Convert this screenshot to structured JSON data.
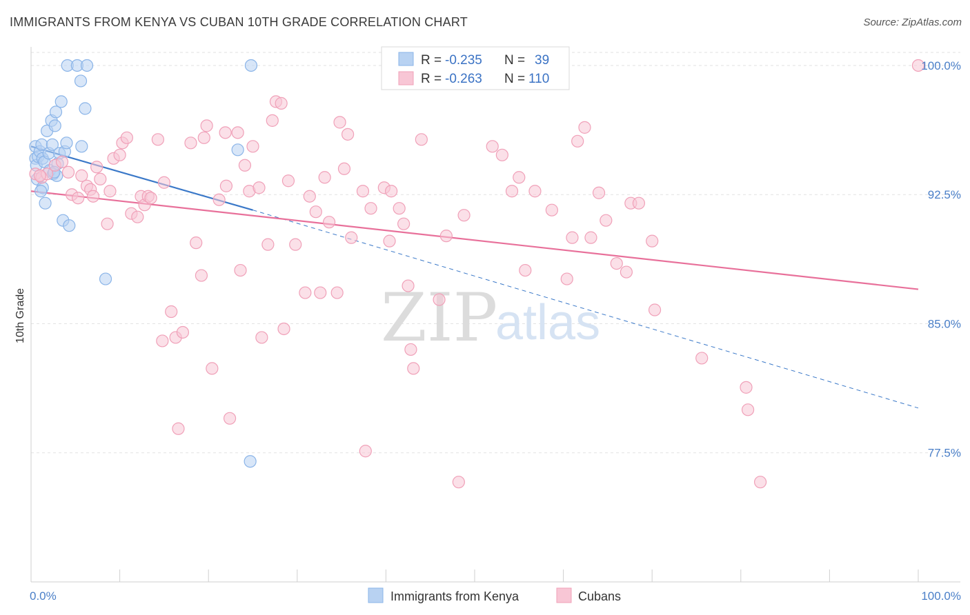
{
  "title": "IMMIGRANTS FROM KENYA VS CUBAN 10TH GRADE CORRELATION CHART",
  "source": "Source: ZipAtlas.com",
  "watermark": {
    "zip": "ZIP",
    "atlas": "atlas"
  },
  "chart_data": {
    "type": "scatter",
    "title": "IMMIGRANTS FROM KENYA VS CUBAN 10TH GRADE CORRELATION CHART",
    "xlabel": "",
    "ylabel": "10th Grade",
    "xlim": [
      0,
      100
    ],
    "ylim": [
      70.0,
      101.0
    ],
    "x_tick_labels": [
      "0.0%",
      "100.0%"
    ],
    "y_ticks": [
      100.0,
      92.5,
      85.0,
      77.5
    ],
    "y_tick_labels": [
      "100.0%",
      "92.5%",
      "85.0%",
      "77.5%"
    ],
    "legend": {
      "rows": [
        {
          "r_label": "R =",
          "r_value": "-0.235",
          "n_label": "N =",
          "n_value": "39"
        },
        {
          "r_label": "R =",
          "r_value": "-0.263",
          "n_label": "N =",
          "n_value": "110"
        }
      ]
    },
    "series": [
      {
        "name": "Immigrants from Kenya",
        "color": "#8ab4e8",
        "fill": "#b8d2f2",
        "line_color": "#3a78c8",
        "trend": {
          "x0": 0,
          "y0": 95.3,
          "x1": 25,
          "y1": 91.6,
          "dash_to_x": 100,
          "dash_to_y": 80.1
        },
        "points": [
          [
            0.5,
            95.3
          ],
          [
            0.5,
            94.6
          ],
          [
            0.6,
            94.2
          ],
          [
            0.7,
            93.4
          ],
          [
            0.8,
            94.7
          ],
          [
            1.0,
            95.0
          ],
          [
            1.2,
            95.4
          ],
          [
            1.3,
            94.6
          ],
          [
            1.5,
            94.4
          ],
          [
            1.6,
            92.0
          ],
          [
            1.8,
            96.2
          ],
          [
            2.0,
            94.9
          ],
          [
            2.1,
            93.9
          ],
          [
            2.3,
            96.8
          ],
          [
            2.4,
            95.4
          ],
          [
            2.5,
            93.7
          ],
          [
            2.7,
            96.5
          ],
          [
            2.8,
            97.3
          ],
          [
            2.9,
            93.6
          ],
          [
            3.0,
            94.3
          ],
          [
            3.2,
            94.9
          ],
          [
            3.4,
            97.9
          ],
          [
            3.6,
            91.0
          ],
          [
            3.8,
            95.0
          ],
          [
            4.0,
            95.5
          ],
          [
            4.3,
            90.7
          ],
          [
            4.1,
            100.0
          ],
          [
            5.2,
            100.0
          ],
          [
            6.3,
            100.0
          ],
          [
            5.6,
            99.1
          ],
          [
            6.1,
            97.5
          ],
          [
            5.7,
            95.3
          ],
          [
            8.4,
            87.6
          ],
          [
            23.3,
            95.1
          ],
          [
            24.8,
            100.0
          ],
          [
            24.7,
            77.0
          ],
          [
            1.3,
            92.9
          ],
          [
            1.1,
            92.7
          ],
          [
            2.6,
            93.8
          ]
        ]
      },
      {
        "name": "Cubans",
        "color": "#f0a0b8",
        "fill": "#f8c6d5",
        "line_color": "#e8709a",
        "trend": {
          "x0": 0,
          "y0": 92.7,
          "x1": 100,
          "y1": 87.0
        },
        "points": [
          [
            0.5,
            93.7
          ],
          [
            1.2,
            93.5
          ],
          [
            1.8,
            93.7
          ],
          [
            2.7,
            94.2
          ],
          [
            3.5,
            94.4
          ],
          [
            4.2,
            93.8
          ],
          [
            4.6,
            92.5
          ],
          [
            5.3,
            92.3
          ],
          [
            5.7,
            93.6
          ],
          [
            6.3,
            93.0
          ],
          [
            6.7,
            92.8
          ],
          [
            7.0,
            92.4
          ],
          [
            7.4,
            94.1
          ],
          [
            7.8,
            93.4
          ],
          [
            8.6,
            90.8
          ],
          [
            8.9,
            92.7
          ],
          [
            9.3,
            94.6
          ],
          [
            10.0,
            94.8
          ],
          [
            10.3,
            95.5
          ],
          [
            10.8,
            95.8
          ],
          [
            11.3,
            91.4
          ],
          [
            12.0,
            91.2
          ],
          [
            12.4,
            92.4
          ],
          [
            12.8,
            91.9
          ],
          [
            13.2,
            92.4
          ],
          [
            13.5,
            92.3
          ],
          [
            14.3,
            95.7
          ],
          [
            15.0,
            93.2
          ],
          [
            14.8,
            84.0
          ],
          [
            15.8,
            85.7
          ],
          [
            16.3,
            84.2
          ],
          [
            16.6,
            78.9
          ],
          [
            17.1,
            84.5
          ],
          [
            18.0,
            95.5
          ],
          [
            18.6,
            89.7
          ],
          [
            19.2,
            87.8
          ],
          [
            19.5,
            95.8
          ],
          [
            19.8,
            96.5
          ],
          [
            20.4,
            82.4
          ],
          [
            21.2,
            92.2
          ],
          [
            21.9,
            96.1
          ],
          [
            22.0,
            93.0
          ],
          [
            22.4,
            79.5
          ],
          [
            23.3,
            96.1
          ],
          [
            23.6,
            88.1
          ],
          [
            24.1,
            94.2
          ],
          [
            24.6,
            92.7
          ],
          [
            25.0,
            95.3
          ],
          [
            25.7,
            92.9
          ],
          [
            26.0,
            84.2
          ],
          [
            26.7,
            89.6
          ],
          [
            27.2,
            96.8
          ],
          [
            27.6,
            97.9
          ],
          [
            28.2,
            97.8
          ],
          [
            28.5,
            84.7
          ],
          [
            29.0,
            93.3
          ],
          [
            29.8,
            89.6
          ],
          [
            30.9,
            86.8
          ],
          [
            31.4,
            92.4
          ],
          [
            32.1,
            91.5
          ],
          [
            32.6,
            86.8
          ],
          [
            33.1,
            93.5
          ],
          [
            33.6,
            90.9
          ],
          [
            34.5,
            86.8
          ],
          [
            34.8,
            96.7
          ],
          [
            35.7,
            96.0
          ],
          [
            35.3,
            94.0
          ],
          [
            36.1,
            90.0
          ],
          [
            37.4,
            92.7
          ],
          [
            37.7,
            77.6
          ],
          [
            38.3,
            91.7
          ],
          [
            39.8,
            92.9
          ],
          [
            40.6,
            92.7
          ],
          [
            40.4,
            89.8
          ],
          [
            41.5,
            91.7
          ],
          [
            42.0,
            90.8
          ],
          [
            42.8,
            83.5
          ],
          [
            42.5,
            87.2
          ],
          [
            43.1,
            82.4
          ],
          [
            44.0,
            95.7
          ],
          [
            46.0,
            86.4
          ],
          [
            46.8,
            90.1
          ],
          [
            48.2,
            75.8
          ],
          [
            48.8,
            91.3
          ],
          [
            52.0,
            95.3
          ],
          [
            53.1,
            94.8
          ],
          [
            54.2,
            92.7
          ],
          [
            55.0,
            93.5
          ],
          [
            55.7,
            88.1
          ],
          [
            56.8,
            92.7
          ],
          [
            58.7,
            91.6
          ],
          [
            60.4,
            87.6
          ],
          [
            61.0,
            90.0
          ],
          [
            61.6,
            95.6
          ],
          [
            62.4,
            96.4
          ],
          [
            63.1,
            90.0
          ],
          [
            64.0,
            92.6
          ],
          [
            64.8,
            91.0
          ],
          [
            66.0,
            88.5
          ],
          [
            67.1,
            88.0
          ],
          [
            67.6,
            92.0
          ],
          [
            68.5,
            92.0
          ],
          [
            70.0,
            89.8
          ],
          [
            70.3,
            85.8
          ],
          [
            75.6,
            83.0
          ],
          [
            80.6,
            81.3
          ],
          [
            80.8,
            80.0
          ],
          [
            82.2,
            75.8
          ],
          [
            100.0,
            100.0
          ],
          [
            1.0,
            93.6
          ]
        ]
      }
    ]
  }
}
